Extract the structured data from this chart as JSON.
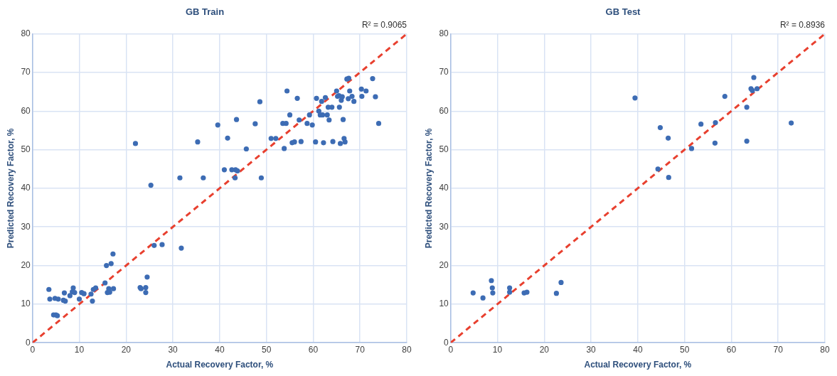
{
  "chart_data": [
    {
      "type": "scatter",
      "title": "GB Train",
      "xlabel": "Actual Recovery Factor, %",
      "ylabel": "Predicted Recovery Factor, %",
      "annotations": [
        "R² = 0.9065"
      ],
      "xlim": [
        0,
        80
      ],
      "ylim": [
        0,
        80
      ],
      "xticks": [
        0,
        10,
        20,
        30,
        40,
        50,
        60,
        70,
        80
      ],
      "yticks": [
        0,
        10,
        20,
        30,
        40,
        50,
        60,
        70,
        80
      ],
      "grid": true,
      "legend": false,
      "marker": "circle",
      "series": [
        {
          "type": "scatter",
          "color": "#3d6cb4",
          "x": [
            3.5,
            3.7,
            4.5,
            5,
            5.3,
            4.8,
            5.5,
            6.6,
            6.8,
            7,
            8,
            8.5,
            8.7,
            9,
            10,
            10.5,
            11,
            12.5,
            12.8,
            13,
            13.5,
            15.5,
            15.8,
            16,
            16.3,
            16.5,
            16.8,
            17.3,
            17.2,
            22,
            23,
            23.2,
            24.2,
            24.2,
            24.5,
            25.3,
            26,
            27.7,
            31.5,
            31.8,
            35.3,
            36.5,
            39.6,
            41,
            41.7,
            42.6,
            43.3,
            43.4,
            43.6,
            43.8,
            45.7,
            47.6,
            48.6,
            48.9,
            51,
            52,
            53.5,
            53.8,
            54.2,
            54.4,
            55,
            55.5,
            56,
            56.6,
            57,
            57.4,
            58.7,
            59.2,
            59.8,
            60.5,
            60.7,
            61.2,
            61.5,
            61.8,
            62,
            62.2,
            62.6,
            63,
            63.2,
            63.4,
            64,
            64.2,
            65,
            65.2,
            65.5,
            65.6,
            65.8,
            66,
            66.2,
            66.4,
            66.6,
            66.8,
            67.2,
            67.5,
            67.6,
            67.8,
            68.3,
            68.7,
            70.3,
            70.4,
            71.3,
            72.7,
            73.3,
            74
          ],
          "values": [
            13.8,
            11.3,
            7.2,
            7.2,
            7,
            11.5,
            11.3,
            11,
            12.9,
            10.8,
            12.2,
            13.2,
            14.2,
            13,
            11.3,
            13,
            12.7,
            12.6,
            10.8,
            13.8,
            14.2,
            15.5,
            20,
            13,
            14,
            13.1,
            20.5,
            14,
            23,
            51.6,
            14.3,
            14,
            13,
            14.3,
            17,
            40.8,
            25.2,
            25.4,
            42.7,
            24.5,
            52,
            42.7,
            56.4,
            44.8,
            53,
            44.8,
            42.7,
            44.8,
            57.8,
            44.5,
            50.2,
            56.7,
            62.4,
            42.7,
            52.9,
            52.9,
            56.8,
            50.3,
            56.8,
            65.2,
            59,
            51.8,
            52,
            63.3,
            57.7,
            52.1,
            56.8,
            59,
            56.4,
            52,
            63.3,
            60,
            59,
            62.5,
            59,
            51.8,
            63.5,
            59,
            61,
            57.7,
            61,
            52.1,
            65.2,
            63.8,
            64,
            61,
            51.6,
            62.8,
            63.7,
            57.8,
            52.9,
            52,
            68.3,
            63.2,
            68.5,
            65.2,
            63.8,
            62.5,
            65.7,
            63.8,
            65.2,
            68.4,
            63.7,
            56.8
          ]
        },
        {
          "type": "line",
          "color": "#e8402f",
          "line_style": "dashed",
          "marker": "none",
          "x": [
            0,
            80
          ],
          "values": [
            0,
            80
          ]
        }
      ]
    },
    {
      "type": "scatter",
      "title": "GB Test",
      "xlabel": "Actual Recovery Factor, %",
      "ylabel": "Predicted Recovery Factor, %",
      "annotations": [
        "R² = 0.8936"
      ],
      "xlim": [
        0,
        80
      ],
      "ylim": [
        0,
        80
      ],
      "xticks": [
        0,
        10,
        20,
        30,
        40,
        50,
        60,
        70,
        80
      ],
      "yticks": [
        0,
        10,
        20,
        30,
        40,
        50,
        60,
        70,
        80
      ],
      "grid": true,
      "legend": false,
      "marker": "circle",
      "series": [
        {
          "type": "scatter",
          "color": "#3d6cb4",
          "x": [
            4.8,
            6.9,
            8.7,
            8.9,
            9,
            12.6,
            12.6,
            15.7,
            16.3,
            22.6,
            23.6,
            39.4,
            44.3,
            44.8,
            46.5,
            46.6,
            51.5,
            53.5,
            56.5,
            56.6,
            58.6,
            63.3,
            63.3,
            64.2,
            64.5,
            64.8,
            65.5,
            72.8
          ],
          "values": [
            12.9,
            11.6,
            16.1,
            14.2,
            12.9,
            14.2,
            13.1,
            12.9,
            13.1,
            12.8,
            15.6,
            63.4,
            45,
            55.7,
            53,
            42.8,
            50.3,
            56.6,
            51.7,
            57,
            63.8,
            61,
            52.2,
            65.8,
            65.3,
            68.7,
            65.8,
            56.9
          ]
        },
        {
          "type": "line",
          "color": "#e8402f",
          "line_style": "dashed",
          "marker": "none",
          "x": [
            0,
            80
          ],
          "values": [
            0,
            80
          ]
        }
      ]
    }
  ]
}
